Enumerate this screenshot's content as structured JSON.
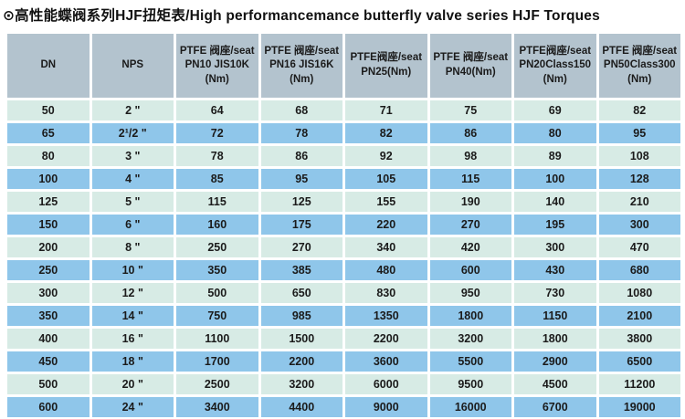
{
  "title": "⊙高性能蝶阀系列HJF扭矩表/High performancemance butterfly valve series HJF Torques",
  "colors": {
    "header_bg": "#b3c3ce",
    "row_light_bg": "#d7ebe5",
    "row_blue_bg": "#8fc6ea",
    "separator": "#ffffff",
    "text": "#1b1b1b"
  },
  "table": {
    "column_keys": [
      "dn",
      "nps",
      "pn10-jis10k",
      "pn16-jis16k",
      "pn25",
      "pn40",
      "pn20-class150",
      "pn50-class300"
    ],
    "headers": [
      "DN",
      "NPS",
      "PTFE 阀座/seat\nPN10 JIS10K\n(Nm)",
      "PTFE 阀座/seat\nPN16 JIS16K\n(Nm)",
      "PTFE阀座/seat\nPN25(Nm)",
      "PTFE 阀座/seat\nPN40(Nm)",
      "PTFE阀座/seat\nPN20Class150\n(Nm)",
      "PTFE 阀座/seat\nPN50Class300\n(Nm)"
    ],
    "rows": [
      {
        "cells": [
          "50",
          "2 \"",
          "64",
          "68",
          "71",
          "75",
          "69",
          "82"
        ]
      },
      {
        "cells": [
          "65",
          "2¹/2 \"",
          "72",
          "78",
          "82",
          "86",
          "80",
          "95"
        ]
      },
      {
        "cells": [
          "80",
          "3 \"",
          "78",
          "86",
          "92",
          "98",
          "89",
          "108"
        ]
      },
      {
        "cells": [
          "100",
          "4 \"",
          "85",
          "95",
          "105",
          "115",
          "100",
          "128"
        ]
      },
      {
        "cells": [
          "125",
          "5 \"",
          "115",
          "125",
          "155",
          "190",
          "140",
          "210"
        ]
      },
      {
        "cells": [
          "150",
          "6 \"",
          "160",
          "175",
          "220",
          "270",
          "195",
          "300"
        ]
      },
      {
        "cells": [
          "200",
          "8 \"",
          "250",
          "270",
          "340",
          "420",
          "300",
          "470"
        ]
      },
      {
        "cells": [
          "250",
          "10 \"",
          "350",
          "385",
          "480",
          "600",
          "430",
          "680"
        ]
      },
      {
        "cells": [
          "300",
          "12 \"",
          "500",
          "650",
          "830",
          "950",
          "730",
          "1080"
        ]
      },
      {
        "cells": [
          "350",
          "14 \"",
          "750",
          "985",
          "1350",
          "1800",
          "1150",
          "2100"
        ]
      },
      {
        "cells": [
          "400",
          "16 \"",
          "1100",
          "1500",
          "2200",
          "3200",
          "1800",
          "3800"
        ]
      },
      {
        "cells": [
          "450",
          "18 \"",
          "1700",
          "2200",
          "3600",
          "5500",
          "2900",
          "6500"
        ]
      },
      {
        "cells": [
          "500",
          "20 \"",
          "2500",
          "3200",
          "6000",
          "9500",
          "4500",
          "11200"
        ]
      },
      {
        "cells": [
          "600",
          "24 \"",
          "3400",
          "4400",
          "9000",
          "16000",
          "6700",
          "19000"
        ]
      }
    ]
  }
}
